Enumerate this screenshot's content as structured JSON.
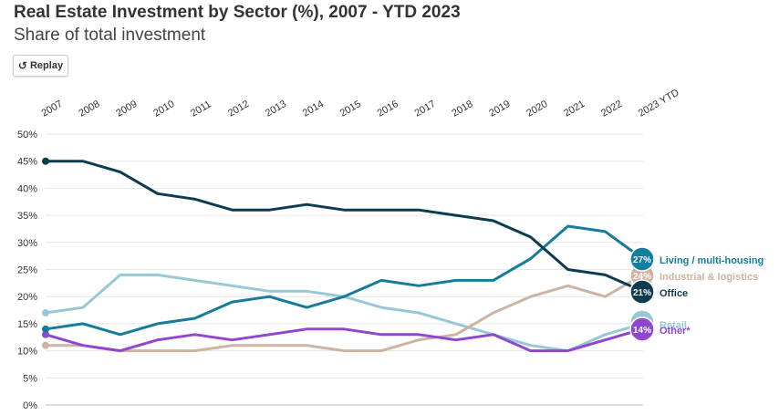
{
  "header": {
    "title": "Real Estate Investment by Sector (%), 2007 - YTD 2023",
    "subtitle": "Share of total investment",
    "replay_label": "Replay",
    "replay_icon": "replay-icon"
  },
  "chart_data": {
    "type": "line",
    "title": "Real Estate Investment by Sector (%), 2007 - YTD 2023",
    "subtitle": "Share of total investment",
    "categories": [
      "2007",
      "2008",
      "2009",
      "2010",
      "2011",
      "2012",
      "2013",
      "2014",
      "2015",
      "2016",
      "2017",
      "2018",
      "2019",
      "2020",
      "2021",
      "2022",
      "2023 YTD"
    ],
    "ylim": [
      0,
      50
    ],
    "yticks": [
      "0%",
      "5%",
      "10%",
      "15%",
      "20%",
      "25%",
      "30%",
      "35%",
      "40%",
      "45%",
      "50%"
    ],
    "grid": true,
    "series": [
      {
        "name": "Retail",
        "color": "#98c8d6",
        "badge": "",
        "values": [
          17,
          18,
          24,
          24,
          23,
          22,
          21,
          21,
          20,
          18,
          17,
          15,
          13,
          11,
          10,
          13,
          15
        ]
      },
      {
        "name": "Industrial & logistics",
        "color": "#cdb3a1",
        "badge": "24%",
        "values": [
          11,
          11,
          10,
          10,
          10,
          11,
          11,
          11,
          10,
          10,
          12,
          13,
          17,
          20,
          22,
          20,
          24
        ]
      },
      {
        "name": "Other*",
        "color": "#9146d2",
        "badge": "14%",
        "values": [
          13,
          11,
          10,
          12,
          13,
          12,
          13,
          14,
          14,
          13,
          13,
          12,
          13,
          10,
          10,
          12,
          14
        ]
      },
      {
        "name": "Living / multi-housing",
        "color": "#157c9b",
        "badge": "27%",
        "values": [
          14,
          15,
          13,
          15,
          16,
          19,
          20,
          18,
          20,
          23,
          22,
          23,
          23,
          27,
          33,
          32,
          27
        ]
      },
      {
        "name": "Office",
        "color": "#0d3b4f",
        "badge": "21%",
        "values": [
          45,
          45,
          43,
          39,
          38,
          36,
          36,
          37,
          36,
          36,
          36,
          35,
          34,
          31,
          25,
          24,
          21
        ]
      }
    ]
  }
}
